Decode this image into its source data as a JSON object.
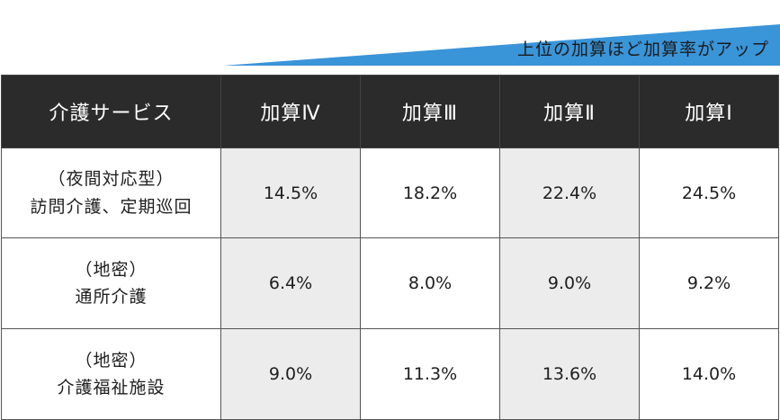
{
  "banner": {
    "text": "上位の加算ほど加算率がアップ",
    "color": "#3a94d8"
  },
  "table": {
    "header": [
      "介護サービス",
      "加算Ⅳ",
      "加算Ⅲ",
      "加算Ⅱ",
      "加算Ⅰ"
    ],
    "rows": [
      {
        "label_line1": "（夜間対応型）",
        "label_line2": "訪問介護、定期巡回",
        "values": [
          "14.5%",
          "18.2%",
          "22.4%",
          "24.5%"
        ]
      },
      {
        "label_line1": "（地密）",
        "label_line2": "通所介護",
        "values": [
          "6.4%",
          "8.0%",
          "9.0%",
          "9.2%"
        ]
      },
      {
        "label_line1": "（地密）",
        "label_line2": "介護福祉施設",
        "values": [
          "9.0%",
          "11.3%",
          "13.6%",
          "14.0%"
        ]
      }
    ]
  },
  "colors": {
    "header_bg": "#2b2b2b",
    "shade_bg": "#ececec",
    "accent": "#3a94d8"
  }
}
